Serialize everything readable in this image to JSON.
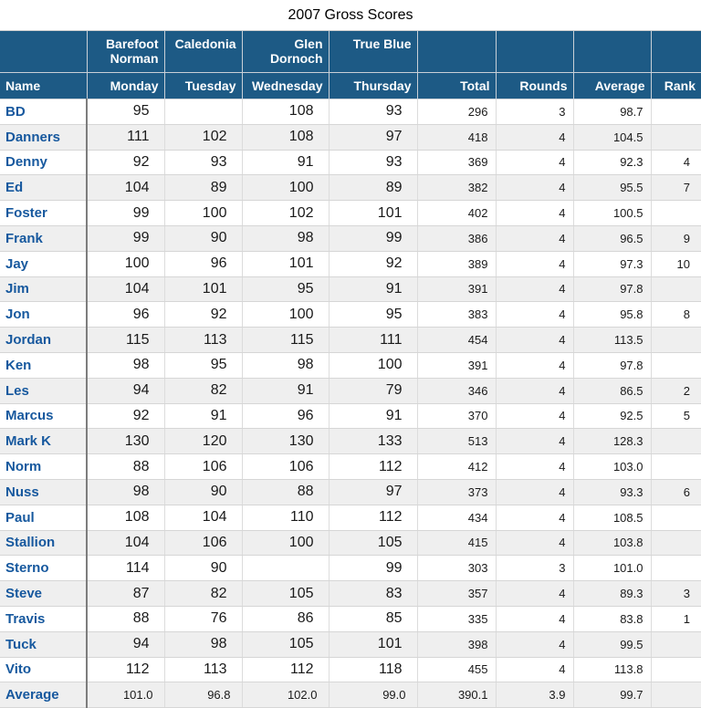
{
  "title": "2007 Gross Scores",
  "colors": {
    "header_bg": "#1d5a85",
    "header_text": "#ffffff",
    "name_text": "#16589e",
    "row_stripe": "#efefef",
    "name_column_border": "#7d7d7d"
  },
  "chart_data": {
    "type": "table",
    "title": "2007 Gross Scores",
    "course_header": [
      "",
      "Barefoot Norman",
      "Caledonia",
      "Glen Dornoch",
      "True Blue",
      "",
      "",
      "",
      ""
    ],
    "columns": [
      "Name",
      "Monday",
      "Tuesday",
      "Wednesday",
      "Thursday",
      "Total",
      "Rounds",
      "Average",
      "Rank"
    ],
    "rows": [
      [
        "BD",
        "95",
        "",
        "108",
        "93",
        "296",
        "3",
        "98.7",
        ""
      ],
      [
        "Danners",
        "111",
        "102",
        "108",
        "97",
        "418",
        "4",
        "104.5",
        ""
      ],
      [
        "Denny",
        "92",
        "93",
        "91",
        "93",
        "369",
        "4",
        "92.3",
        "4"
      ],
      [
        "Ed",
        "104",
        "89",
        "100",
        "89",
        "382",
        "4",
        "95.5",
        "7"
      ],
      [
        "Foster",
        "99",
        "100",
        "102",
        "101",
        "402",
        "4",
        "100.5",
        ""
      ],
      [
        "Frank",
        "99",
        "90",
        "98",
        "99",
        "386",
        "4",
        "96.5",
        "9"
      ],
      [
        "Jay",
        "100",
        "96",
        "101",
        "92",
        "389",
        "4",
        "97.3",
        "10"
      ],
      [
        "Jim",
        "104",
        "101",
        "95",
        "91",
        "391",
        "4",
        "97.8",
        ""
      ],
      [
        "Jon",
        "96",
        "92",
        "100",
        "95",
        "383",
        "4",
        "95.8",
        "8"
      ],
      [
        "Jordan",
        "115",
        "113",
        "115",
        "111",
        "454",
        "4",
        "113.5",
        ""
      ],
      [
        "Ken",
        "98",
        "95",
        "98",
        "100",
        "391",
        "4",
        "97.8",
        ""
      ],
      [
        "Les",
        "94",
        "82",
        "91",
        "79",
        "346",
        "4",
        "86.5",
        "2"
      ],
      [
        "Marcus",
        "92",
        "91",
        "96",
        "91",
        "370",
        "4",
        "92.5",
        "5"
      ],
      [
        "Mark K",
        "130",
        "120",
        "130",
        "133",
        "513",
        "4",
        "128.3",
        ""
      ],
      [
        "Norm",
        "88",
        "106",
        "106",
        "112",
        "412",
        "4",
        "103.0",
        ""
      ],
      [
        "Nuss",
        "98",
        "90",
        "88",
        "97",
        "373",
        "4",
        "93.3",
        "6"
      ],
      [
        "Paul",
        "108",
        "104",
        "110",
        "112",
        "434",
        "4",
        "108.5",
        ""
      ],
      [
        "Stallion",
        "104",
        "106",
        "100",
        "105",
        "415",
        "4",
        "103.8",
        ""
      ],
      [
        "Sterno",
        "114",
        "90",
        "",
        "99",
        "303",
        "3",
        "101.0",
        ""
      ],
      [
        "Steve",
        "87",
        "82",
        "105",
        "83",
        "357",
        "4",
        "89.3",
        "3"
      ],
      [
        "Travis",
        "88",
        "76",
        "86",
        "85",
        "335",
        "4",
        "83.8",
        "1"
      ],
      [
        "Tuck",
        "94",
        "98",
        "105",
        "101",
        "398",
        "4",
        "99.5",
        ""
      ],
      [
        "Vito",
        "112",
        "113",
        "112",
        "118",
        "455",
        "4",
        "113.8",
        ""
      ]
    ],
    "average_row": [
      "Average",
      "101.0",
      "96.8",
      "102.0",
      "99.0",
      "390.1",
      "3.9",
      "99.7",
      ""
    ]
  }
}
